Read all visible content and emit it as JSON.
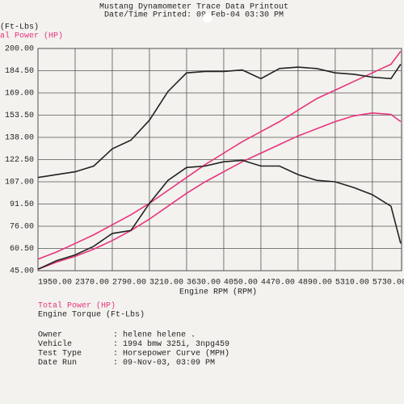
{
  "chart_data": {
    "type": "line",
    "title": "Mustang Dynamometer Trace Data Printout",
    "subtitle": "Date/Time Printed: 09-Feb-04 03:30 PM",
    "ylabel_lines": [
      "(Ft-Lbs)",
      "al Power (HP)"
    ],
    "xlabel": "Engine RPM (RPM)",
    "x": [
      1950,
      2160,
      2370,
      2580,
      2790,
      3000,
      3210,
      3420,
      3630,
      3840,
      4050,
      4260,
      4470,
      4680,
      4890,
      5100,
      5310,
      5520,
      5730,
      5940,
      6050
    ],
    "series": [
      {
        "name": "Total Power (HP)",
        "color": "#e8337e",
        "values": [
          53,
          58,
          64,
          70,
          77,
          84,
          92,
          101,
          110,
          119,
          127,
          135,
          142,
          149,
          157,
          165,
          171,
          177,
          183,
          189,
          198
        ]
      },
      {
        "name": "Engine Torque (Ft-Lbs)",
        "color": "#222222",
        "values": [
          110,
          112,
          114,
          118,
          130,
          136,
          150,
          170,
          183,
          184,
          184,
          185,
          179,
          186,
          187,
          186,
          183,
          182,
          180,
          179,
          189
        ]
      },
      {
        "color": "#e8337e",
        "values": [
          46,
          51,
          55,
          60,
          66,
          73,
          81,
          90,
          99,
          107,
          114,
          121,
          127,
          133,
          139,
          144,
          149,
          153,
          155,
          154,
          149
        ]
      },
      {
        "color": "#222222",
        "values": [
          46,
          52,
          56,
          62,
          71,
          73,
          92,
          108,
          117,
          118,
          121,
          122,
          118,
          118,
          112,
          108,
          107,
          103,
          98,
          90,
          64
        ]
      }
    ],
    "xlim": [
      1950,
      6060
    ],
    "xticks": [
      {
        "value": 1950,
        "label": "1950.00"
      },
      {
        "value": 2370,
        "label": "2370.00"
      },
      {
        "value": 2790,
        "label": "2790.00"
      },
      {
        "value": 3210,
        "label": "3210.00"
      },
      {
        "value": 3630,
        "label": "3630.00"
      },
      {
        "value": 4050,
        "label": "4050.00"
      },
      {
        "value": 4470,
        "label": "4470.00"
      },
      {
        "value": 4890,
        "label": "4890.00"
      },
      {
        "value": 5310,
        "label": "5310.00"
      },
      {
        "value": 5730,
        "label": "5730.00"
      }
    ],
    "ylim": [
      45,
      200
    ],
    "yticks": [
      {
        "value": 45,
        "label": "45.00"
      },
      {
        "value": 60.5,
        "label": "60.50"
      },
      {
        "value": 76,
        "label": "76.00"
      },
      {
        "value": 91.5,
        "label": "91.50"
      },
      {
        "value": 107,
        "label": "107.00"
      },
      {
        "value": 122.5,
        "label": "122.50"
      },
      {
        "value": 138,
        "label": "138.00"
      },
      {
        "value": 153.5,
        "label": "153.50"
      },
      {
        "value": 169,
        "label": "169.00"
      },
      {
        "value": 184.5,
        "label": "184.50"
      },
      {
        "value": 200,
        "label": "200.00"
      }
    ],
    "grid": true
  },
  "info": [
    {
      "label": "Owner",
      "value": ": helene helene   ."
    },
    {
      "label": "Vehicle",
      "value": ": 1994 bmw 325i, 3npg459"
    },
    {
      "label": "Test Type",
      "value": ": Horsepower Curve (MPH)"
    },
    {
      "label": "Date Run",
      "value": ": 09-Nov-03, 03:09 PM"
    }
  ]
}
